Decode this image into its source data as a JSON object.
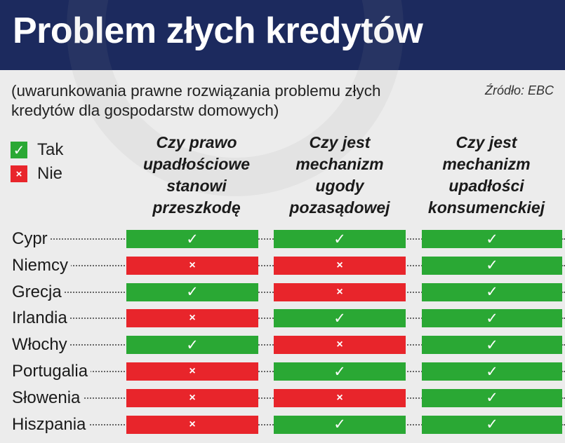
{
  "title": "Problem złych kredytów",
  "subtitle": "(uwarunkowania prawne rozwiązania problemu złych kredytów dla gospodarstw domowych)",
  "source": "Źródło: EBC",
  "legend": {
    "yes": {
      "label": "Tak",
      "symbol": "✓",
      "color": "#2aa834"
    },
    "no": {
      "label": "Nie",
      "symbol": "×",
      "color": "#e8252b"
    }
  },
  "chart_data": {
    "type": "table",
    "title": "Problem złych kredytów",
    "columns": [
      "Czy prawo upadłościowe stanowi przeszkodę",
      "Czy jest mechanizm ugody pozasądowej",
      "Czy jest mechanizm upadłości konsumenckiej"
    ],
    "rows": [
      {
        "country": "Cypr",
        "values": [
          "Tak",
          "Tak",
          "Tak"
        ]
      },
      {
        "country": "Niemcy",
        "values": [
          "Nie",
          "Nie",
          "Tak"
        ]
      },
      {
        "country": "Grecja",
        "values": [
          "Tak",
          "Nie",
          "Tak"
        ]
      },
      {
        "country": "Irlandia",
        "values": [
          "Nie",
          "Tak",
          "Tak"
        ]
      },
      {
        "country": "Włochy",
        "values": [
          "Tak",
          "Nie",
          "Tak"
        ]
      },
      {
        "country": "Portugalia",
        "values": [
          "Nie",
          "Tak",
          "Tak"
        ]
      },
      {
        "country": "Słowenia",
        "values": [
          "Nie",
          "Nie",
          "Tak"
        ]
      },
      {
        "country": "Hiszpania",
        "values": [
          "Nie",
          "Tak",
          "Tak"
        ]
      }
    ]
  }
}
